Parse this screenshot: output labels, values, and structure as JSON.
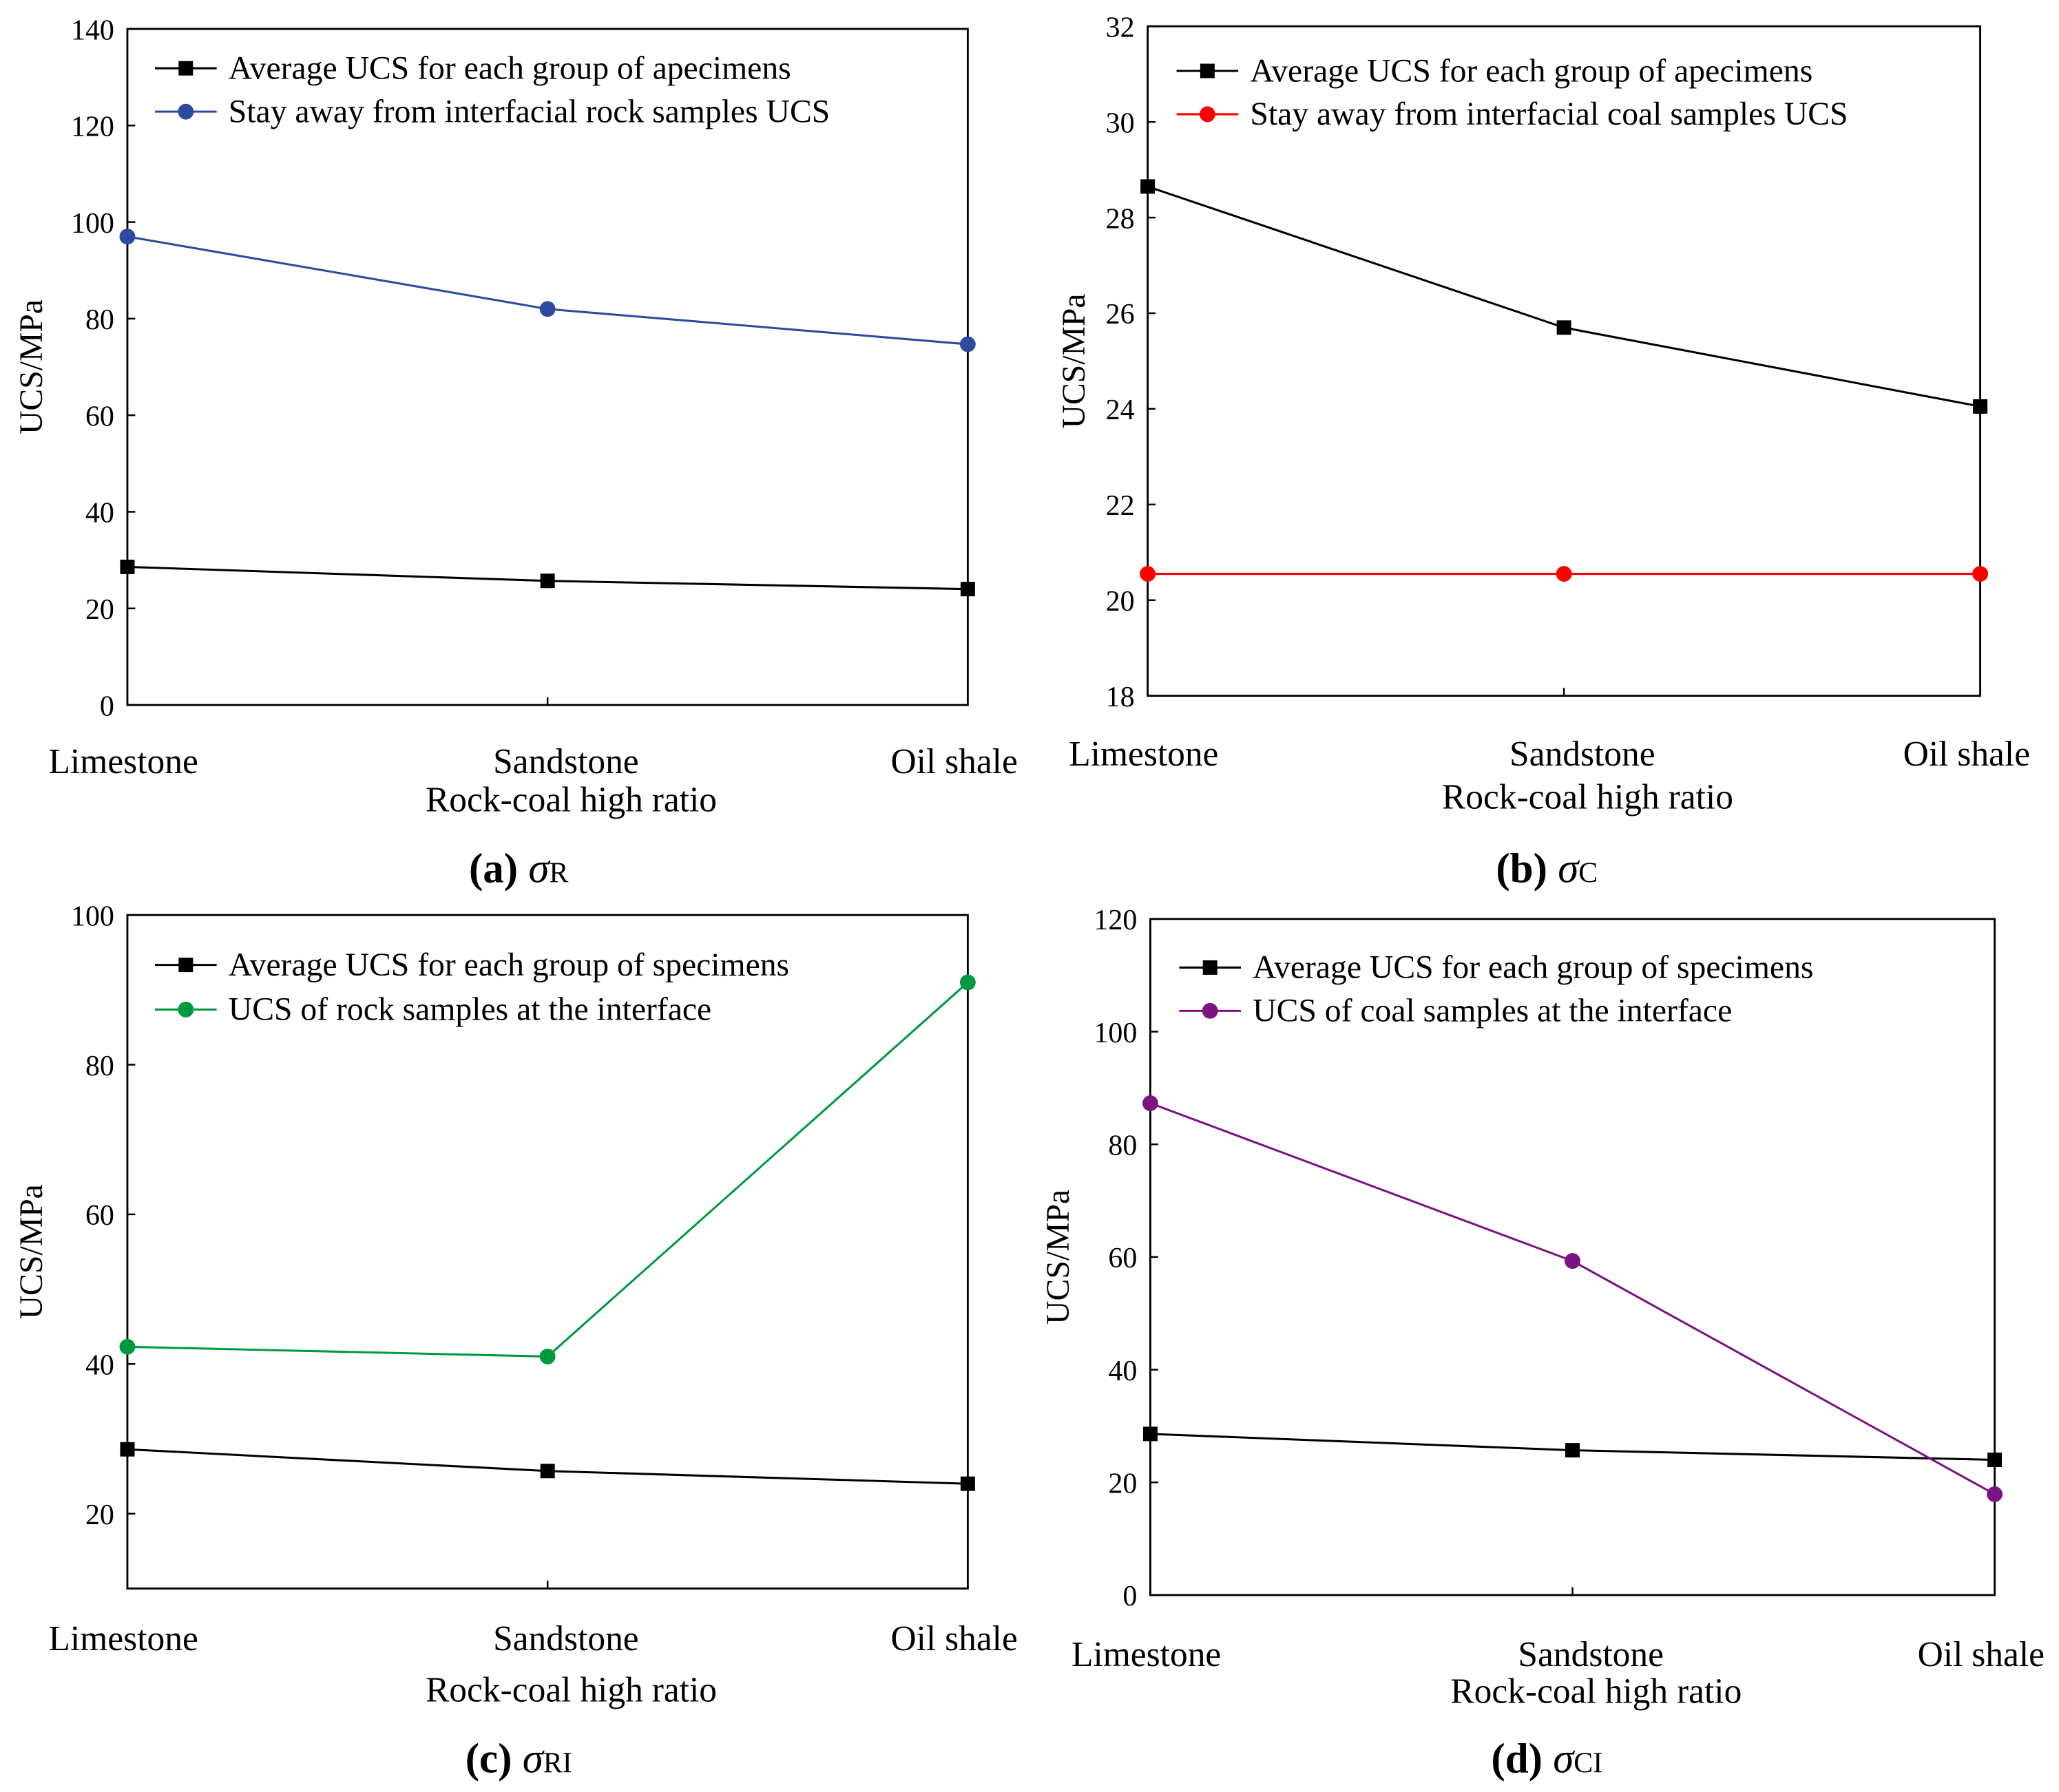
{
  "chart_data": [
    {
      "type": "line",
      "categories": [
        "Limestone",
        "Sandstone",
        "Oil shale"
      ],
      "xlabel": "Rock-coal high ratio",
      "ylabel": "UCS/MPa",
      "ylim": [
        0,
        140
      ],
      "yticks": [
        "0",
        "20",
        "40",
        "60",
        "80",
        "100",
        "120",
        "140"
      ],
      "caption": {
        "label": "(a)",
        "symbol": "σ",
        "sub": "R"
      },
      "legend_position": "top-left",
      "series": [
        {
          "name": "Average UCS for each group of apecimens",
          "marker": "square",
          "color": "#000000",
          "values": [
            28.6,
            25.7,
            24.0
          ]
        },
        {
          "name": "Stay away from interfacial rock samples UCS",
          "marker": "circle",
          "color": "#2E4A9E",
          "values": [
            97.0,
            82.0,
            74.7
          ]
        }
      ]
    },
    {
      "type": "line",
      "categories": [
        "Limestone",
        "Sandstone",
        "Oil shale"
      ],
      "xlabel": "Rock-coal high ratio",
      "ylabel": "UCS/MPa",
      "ylim": [
        18,
        32
      ],
      "yticks": [
        "18",
        "20",
        "22",
        "24",
        "26",
        "28",
        "30",
        "32"
      ],
      "caption": {
        "label": "(b)",
        "symbol": "σ",
        "sub": "C"
      },
      "legend_position": "top-left",
      "series": [
        {
          "name": "Average UCS for each group of apecimens",
          "marker": "square",
          "color": "#000000",
          "values": [
            28.65,
            25.7,
            24.05
          ]
        },
        {
          "name": "Stay away from interfacial coal samples UCS",
          "marker": "circle",
          "color": "#FF0000",
          "values": [
            20.55,
            20.55,
            20.55
          ]
        }
      ]
    },
    {
      "type": "line",
      "categories": [
        "Limestone",
        "Sandstone",
        "Oil shale"
      ],
      "xlabel": "Rock-coal high ratio",
      "ylabel": "UCS/MPa",
      "ylim": [
        10,
        100
      ],
      "yticks": [
        "20",
        "40",
        "60",
        "80",
        "100"
      ],
      "caption": {
        "label": "(c)",
        "symbol": "σ",
        "sub": "RI"
      },
      "legend_position": "top-left",
      "series": [
        {
          "name": "Average UCS for each group of specimens",
          "marker": "square",
          "color": "#000000",
          "values": [
            28.6,
            25.7,
            24.0
          ]
        },
        {
          "name": "UCS of rock samples at the interface",
          "marker": "circle",
          "color": "#009940",
          "values": [
            42.3,
            41.0,
            91.0
          ]
        }
      ]
    },
    {
      "type": "line",
      "categories": [
        "Limestone",
        "Sandstone",
        "Oil shale"
      ],
      "xlabel": "Rock-coal high ratio",
      "ylabel": "UCS/MPa",
      "ylim": [
        0,
        120
      ],
      "yticks": [
        "0",
        "20",
        "40",
        "60",
        "80",
        "100",
        "120"
      ],
      "caption": {
        "label": "(d)",
        "symbol": "σ",
        "sub": "CI"
      },
      "legend_position": "top-left",
      "series": [
        {
          "name": "Average UCS for each group of specimens",
          "marker": "square",
          "color": "#000000",
          "values": [
            28.6,
            25.7,
            24.0
          ]
        },
        {
          "name": "UCS of coal samples at the interface",
          "marker": "circle",
          "color": "#7B1480",
          "values": [
            87.3,
            59.3,
            17.9
          ]
        }
      ]
    }
  ]
}
